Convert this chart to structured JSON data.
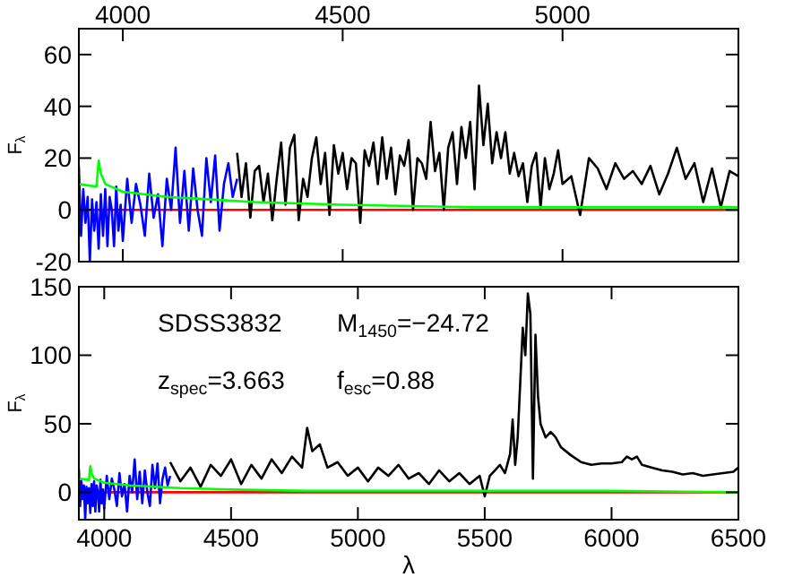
{
  "chart_data": [
    {
      "type": "line",
      "ylabel": "F$_{λ}$",
      "xlim": [
        3900,
        5400
      ],
      "xticks": [
        4000,
        4500,
        5000
      ],
      "ylim": [
        -20,
        70
      ],
      "yticks": [
        -20,
        0,
        20,
        40,
        60
      ],
      "grid": false,
      "line_style": "solid",
      "series": [
        {
          "color": "#ff0000",
          "x": [
            3900,
            5400
          ],
          "values": [
            0,
            0
          ]
        },
        {
          "color": "#0000ff",
          "x": [
            3900,
            3905,
            3910,
            3915,
            3920,
            3925,
            3930,
            3935,
            3940,
            3945,
            3950,
            3955,
            3960,
            3965,
            3970,
            3975,
            3980,
            3985,
            3990,
            3995,
            4000,
            4010,
            4020,
            4030,
            4040,
            4050,
            4060,
            4070,
            4080,
            4090,
            4100,
            4110,
            4120,
            4130,
            4140,
            4150,
            4160,
            4170,
            4180,
            4190,
            4200,
            4210,
            4220,
            4230,
            4240,
            4250,
            4260
          ],
          "values": [
            17,
            -10,
            8,
            -5,
            5,
            -20,
            4,
            -8,
            3,
            -15,
            6,
            -10,
            8,
            -14,
            5,
            0,
            -14,
            9,
            -8,
            2,
            -12,
            12,
            -5,
            10,
            2,
            -10,
            14,
            -3,
            6,
            -14,
            12,
            0,
            24,
            -5,
            15,
            -8,
            16,
            0,
            -10,
            20,
            3,
            21,
            -8,
            10,
            18,
            5,
            12
          ]
        },
        {
          "color": "#000000",
          "x": [
            4260,
            4270,
            4280,
            4290,
            4300,
            4310,
            4320,
            4330,
            4340,
            4350,
            4360,
            4370,
            4380,
            4390,
            4400,
            4410,
            4420,
            4430,
            4440,
            4450,
            4460,
            4470,
            4480,
            4490,
            4500,
            4510,
            4520,
            4530,
            4540,
            4550,
            4560,
            4570,
            4580,
            4590,
            4600,
            4610,
            4620,
            4630,
            4640,
            4650,
            4660,
            4670,
            4680,
            4690,
            4700,
            4710,
            4720,
            4730,
            4740,
            4750,
            4760,
            4770,
            4780,
            4790,
            4800,
            4810,
            4820,
            4830,
            4840,
            4850,
            4860,
            4870,
            4880,
            4890,
            4900,
            4910,
            4920,
            4930,
            4940,
            4950,
            4960,
            4970,
            4980,
            4990,
            5000,
            5020,
            5040,
            5060,
            5080,
            5100,
            5120,
            5140,
            5160,
            5180,
            5200,
            5220,
            5240,
            5260,
            5280,
            5300,
            5320,
            5340,
            5360,
            5380,
            5400
          ],
          "values": [
            22,
            5,
            18,
            -3,
            15,
            17,
            3,
            14,
            -4,
            12,
            26,
            2,
            24,
            29,
            -4,
            12,
            5,
            20,
            28,
            10,
            22,
            -2,
            25,
            14,
            22,
            8,
            20,
            18,
            -5,
            23,
            17,
            26,
            10,
            28,
            12,
            24,
            6,
            21,
            17,
            27,
            0,
            20,
            18,
            12,
            34,
            15,
            22,
            0,
            24,
            30,
            10,
            32,
            20,
            34,
            8,
            48,
            25,
            41,
            18,
            30,
            20,
            30,
            14,
            22,
            13,
            18,
            3,
            17,
            22,
            1,
            20,
            8,
            14,
            23,
            10,
            13,
            -2,
            20,
            16,
            8,
            18,
            12,
            15,
            10,
            17,
            6,
            14,
            24,
            12,
            18,
            3,
            16,
            1,
            15,
            13
          ]
        },
        {
          "color": "#00ff00",
          "x": [
            3900,
            3940,
            3945,
            3950,
            3960,
            4000,
            4100,
            4200,
            4300,
            4500,
            4800,
            5000,
            5400
          ],
          "values": [
            10,
            9,
            19,
            14,
            10,
            7,
            5,
            4,
            3,
            2,
            1,
            1,
            1
          ]
        }
      ]
    },
    {
      "type": "line",
      "xlabel": "λ",
      "ylabel": "F$_{λ}$",
      "xlim": [
        3900,
        6500
      ],
      "xticks": [
        4000,
        4500,
        5000,
        5500,
        6000,
        6500
      ],
      "ylim": [
        -20,
        150
      ],
      "yticks": [
        0,
        50,
        100,
        150
      ],
      "grid": false,
      "line_style": "solid",
      "annotations": [
        "SDSS3832",
        "M$_{1450}$=−24.72",
        "z$_{spec}$=3.663",
        "f$_{esc}$=0.88"
      ],
      "series": [
        {
          "color": "#ff0000",
          "x": [
            3900,
            6500
          ],
          "values": [
            0,
            0
          ]
        },
        {
          "color": "#0000ff",
          "x": [
            3900,
            3905,
            3910,
            3915,
            3920,
            3925,
            3930,
            3935,
            3940,
            3945,
            3950,
            3955,
            3960,
            3965,
            3970,
            3975,
            3980,
            3985,
            3990,
            3995,
            4000,
            4010,
            4020,
            4030,
            4040,
            4050,
            4060,
            4070,
            4080,
            4090,
            4100,
            4110,
            4120,
            4130,
            4140,
            4150,
            4160,
            4170,
            4180,
            4190,
            4200,
            4210,
            4220,
            4230,
            4240,
            4250,
            4260
          ],
          "values": [
            17,
            -10,
            8,
            -5,
            5,
            -20,
            4,
            -8,
            3,
            -15,
            6,
            -10,
            8,
            -14,
            5,
            0,
            -14,
            9,
            -8,
            2,
            -12,
            12,
            -5,
            10,
            2,
            -10,
            14,
            -3,
            6,
            -14,
            12,
            0,
            24,
            -5,
            15,
            -8,
            16,
            0,
            -10,
            20,
            3,
            21,
            -8,
            10,
            18,
            5,
            12
          ]
        },
        {
          "color": "#000000",
          "x": [
            4260,
            4300,
            4340,
            4380,
            4420,
            4460,
            4500,
            4540,
            4580,
            4620,
            4660,
            4700,
            4740,
            4780,
            4800,
            4820,
            4850,
            4880,
            4920,
            4960,
            5000,
            5040,
            5080,
            5120,
            5160,
            5200,
            5240,
            5280,
            5320,
            5360,
            5400,
            5440,
            5480,
            5500,
            5520,
            5560,
            5580,
            5600,
            5610,
            5620,
            5630,
            5650,
            5660,
            5670,
            5680,
            5690,
            5700,
            5710,
            5720,
            5740,
            5760,
            5780,
            5800,
            5840,
            5880,
            5920,
            5960,
            6000,
            6040,
            6060,
            6080,
            6100,
            6120,
            6160,
            6200,
            6240,
            6280,
            6320,
            6360,
            6400,
            6440,
            6480,
            6500
          ],
          "values": [
            22,
            8,
            18,
            4,
            20,
            12,
            24,
            6,
            20,
            10,
            24,
            14,
            26,
            18,
            47,
            30,
            35,
            18,
            22,
            12,
            18,
            8,
            18,
            12,
            20,
            10,
            14,
            6,
            16,
            8,
            14,
            6,
            12,
            -3,
            12,
            20,
            14,
            28,
            53,
            20,
            40,
            120,
            100,
            145,
            130,
            10,
            115,
            70,
            50,
            40,
            44,
            40,
            33,
            27,
            22,
            20,
            21,
            21,
            22,
            26,
            24,
            26,
            20,
            18,
            16,
            15,
            13,
            14,
            12,
            13,
            14,
            15,
            18
          ]
        },
        {
          "color": "#00ff00",
          "x": [
            3900,
            3940,
            3945,
            3950,
            3960,
            4000,
            4100,
            4200,
            4300,
            4500,
            4800,
            5000,
            5400,
            6000,
            6500
          ],
          "values": [
            10,
            9,
            19,
            14,
            10,
            7,
            5,
            4,
            3,
            2,
            1,
            1,
            1,
            1,
            0
          ]
        }
      ]
    }
  ]
}
